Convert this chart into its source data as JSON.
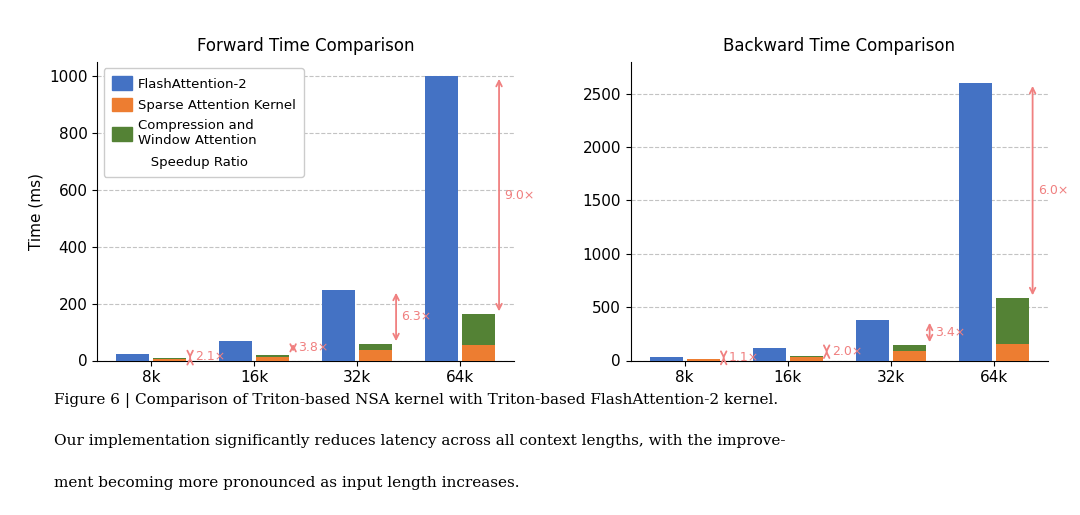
{
  "forward": {
    "title": "Forward Time Comparison",
    "ylabel": "Time (ms)",
    "categories": [
      "8k",
      "16k",
      "32k",
      "64k"
    ],
    "flash_attn": [
      22,
      68,
      248,
      1000
    ],
    "sparse_kernel": [
      5,
      13,
      38,
      55
    ],
    "compress_window": [
      3,
      8,
      20,
      108
    ],
    "speedup_labels": [
      "2.1×",
      "3.8×",
      "6.3×",
      "9.0×"
    ],
    "ylim": [
      0,
      1050
    ],
    "yticks": [
      0,
      200,
      400,
      600,
      800,
      1000
    ]
  },
  "backward": {
    "title": "Backward Time Comparison",
    "ylabel": "",
    "categories": [
      "8k",
      "16k",
      "32k",
      "64k"
    ],
    "flash_attn": [
      35,
      120,
      380,
      2600
    ],
    "sparse_kernel": [
      10,
      30,
      90,
      155
    ],
    "compress_window": [
      5,
      15,
      55,
      430
    ],
    "speedup_labels": [
      "1.1×",
      "2.0×",
      "3.4×",
      "6.0×"
    ],
    "ylim": [
      0,
      2800
    ],
    "yticks": [
      0,
      500,
      1000,
      1500,
      2000,
      2500
    ]
  },
  "colors": {
    "flash": "#4472C4",
    "sparse": "#ED7D31",
    "compress": "#548235",
    "speedup_arrow": "#F08080",
    "speedup_text": "#F08080"
  },
  "bar_width": 0.32,
  "caption_line1": "Figure 6 | Comparison of Triton-based NSA kernel with Triton-based FlashAttention-2 kernel.",
  "caption_line2": "Our implementation significantly reduces latency across all context lengths, with the improve-",
  "caption_line3": "ment becoming more pronounced as input length increases."
}
